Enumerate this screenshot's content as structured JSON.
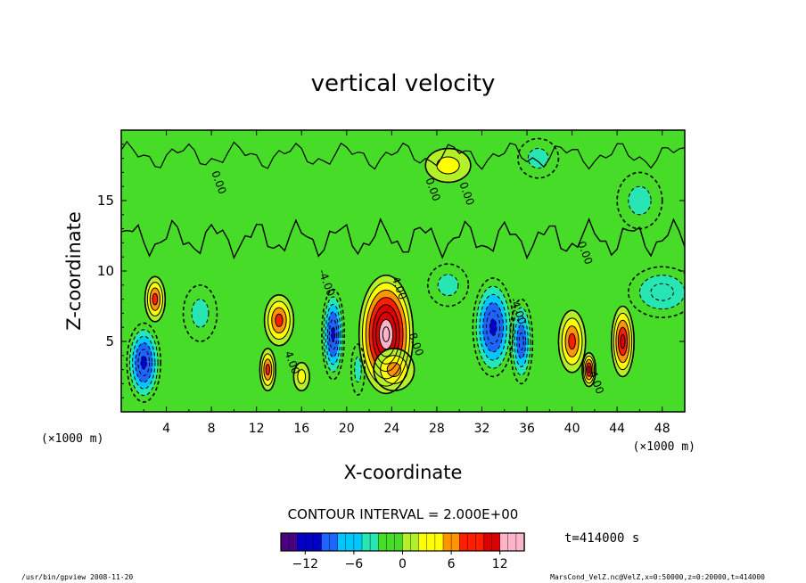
{
  "chart_data": {
    "type": "heatmap",
    "title": "vertical velocity",
    "xlabel": "X-coordinate",
    "ylabel": "Z-coordinate",
    "x_unit_left": "(×1000 m)",
    "x_unit_right": "(×1000 m)",
    "xlim": [
      0,
      50
    ],
    "ylim": [
      0,
      20
    ],
    "x_ticks": [
      4,
      8,
      12,
      16,
      20,
      24,
      28,
      32,
      36,
      40,
      44,
      48
    ],
    "y_ticks": [
      5,
      10,
      15
    ],
    "contour_interval_text": "CONTOUR INTERVAL = 2.000E+00",
    "time_text": "t=414000 s",
    "colorbar": {
      "range": [
        -15,
        15
      ],
      "ticks": [
        -12,
        -6,
        0,
        6,
        12
      ],
      "colors": [
        "#4b0082",
        "#0000c8",
        "#1e64ff",
        "#00c8ff",
        "#28e6b4",
        "#46dc28",
        "#b4f028",
        "#ffff00",
        "#ff9600",
        "#ff1e00",
        "#dc0000",
        "#ffb4c8"
      ]
    },
    "features": [
      {
        "x": 2,
        "z": 3.5,
        "value": -12,
        "sx": 1.5,
        "sz": 2.8
      },
      {
        "x": 3,
        "z": 8,
        "value": 8,
        "sx": 0.9,
        "sz": 1.6
      },
      {
        "x": 7,
        "z": 7,
        "value": -4,
        "sx": 1.5,
        "sz": 2
      },
      {
        "x": 13,
        "z": 3,
        "value": 8,
        "sx": 0.7,
        "sz": 1.5
      },
      {
        "x": 14,
        "z": 6.5,
        "value": 8,
        "sx": 1.3,
        "sz": 1.8
      },
      {
        "x": 16,
        "z": 2.5,
        "value": 4,
        "sx": 0.7,
        "sz": 1
      },
      {
        "x": 18.8,
        "z": 5.5,
        "value": -12,
        "sx": 1,
        "sz": 3.2
      },
      {
        "x": 21,
        "z": 3,
        "value": -4,
        "sx": 0.6,
        "sz": 1.8
      },
      {
        "x": 23.5,
        "z": 5.5,
        "value": 16,
        "sx": 2.4,
        "sz": 4.2
      },
      {
        "x": 24.2,
        "z": 3,
        "value": 6,
        "sx": 1.8,
        "sz": 1.5
      },
      {
        "x": 33,
        "z": 6,
        "value": -12,
        "sx": 1.8,
        "sz": 3.5
      },
      {
        "x": 35.5,
        "z": 5,
        "value": -9,
        "sx": 1,
        "sz": 3
      },
      {
        "x": 29,
        "z": 9,
        "value": -4,
        "sx": 1.8,
        "sz": 1.5
      },
      {
        "x": 40,
        "z": 5,
        "value": 8,
        "sx": 1.2,
        "sz": 2.2
      },
      {
        "x": 41.5,
        "z": 3,
        "value": 10,
        "sx": 0.6,
        "sz": 1.2
      },
      {
        "x": 44.5,
        "z": 5,
        "value": 10,
        "sx": 1,
        "sz": 2.5
      },
      {
        "x": 48,
        "z": 8.5,
        "value": -5,
        "sx": 3,
        "sz": 1.8
      },
      {
        "x": 46,
        "z": 15,
        "value": -4,
        "sx": 2,
        "sz": 2
      },
      {
        "x": 29,
        "z": 17.5,
        "value": 3,
        "sx": 2,
        "sz": 1.2
      },
      {
        "x": 37,
        "z": 18,
        "value": -3,
        "sx": 1.8,
        "sz": 1.4
      }
    ],
    "contour_labels": [
      "0.00",
      "0.00",
      "4.00",
      "8.00",
      "-4.00",
      "4.00",
      "-4.00",
      "4.00",
      "0.00",
      "0.00"
    ]
  },
  "footer": {
    "left": "/usr/bin/gpview   2008-11-20",
    "right": "MarsCond_VelZ.nc@VelZ,x=0:50000,z=0:20000,t=414000"
  }
}
